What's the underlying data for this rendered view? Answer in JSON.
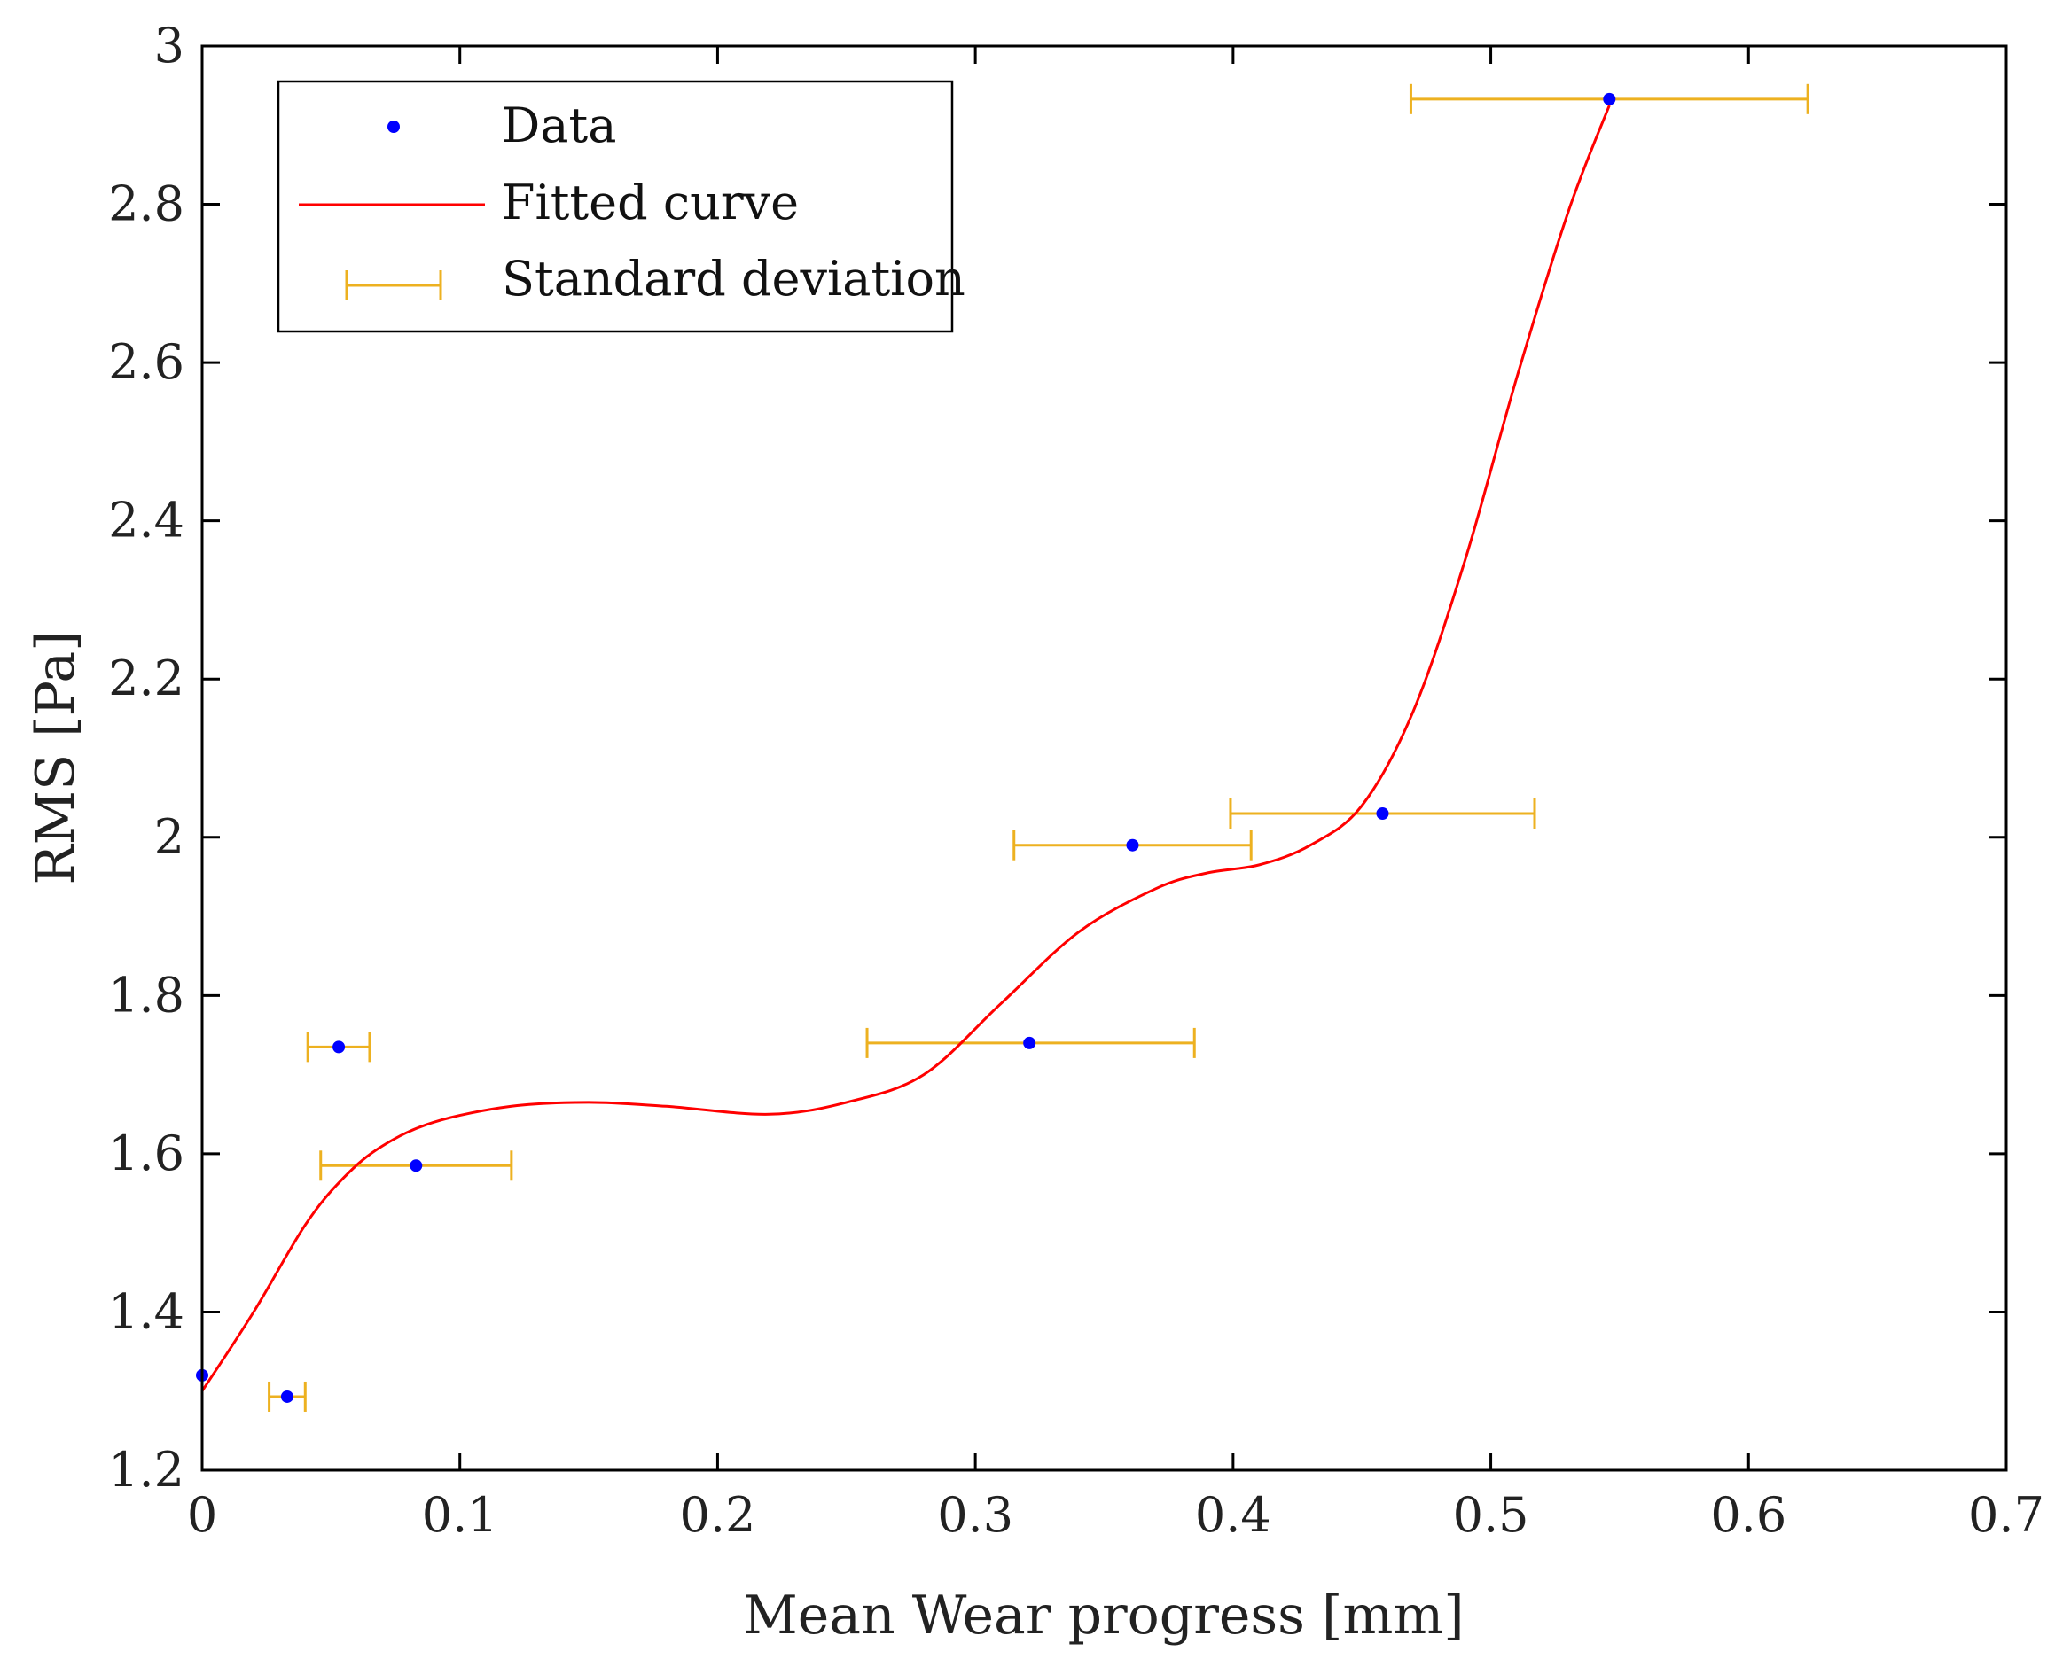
{
  "chart_data": {
    "type": "scatter",
    "title": "",
    "xlabel": "Mean Wear progress [mm]",
    "ylabel": "RMS [Pa]",
    "xlim": [
      0,
      0.7
    ],
    "ylim": [
      1.2,
      3.0
    ],
    "xticks": [
      0,
      0.1,
      0.2,
      0.3,
      0.4,
      0.5,
      0.6,
      0.7
    ],
    "xtick_labels": [
      "0",
      "0.1",
      "0.2",
      "0.3",
      "0.4",
      "0.5",
      "0.6",
      "0.7"
    ],
    "yticks": [
      1.2,
      1.4,
      1.6,
      1.8,
      2.0,
      2.2,
      2.4,
      2.6,
      2.8,
      3.0
    ],
    "ytick_labels": [
      "1.2",
      "1.4",
      "1.6",
      "1.8",
      "2",
      "2.2",
      "2.4",
      "2.6",
      "2.8",
      "3"
    ],
    "grid": false,
    "legend_position": "top-left",
    "legend": [
      "Data",
      "Fitted curve",
      "Standard deviation"
    ],
    "colors": {
      "data": "#0000ff",
      "fit": "#ff0000",
      "error": "#edb120",
      "axes": "#000000"
    },
    "series": [
      {
        "name": "Data",
        "kind": "points",
        "x": [
          0.0,
          0.033,
          0.053,
          0.083,
          0.321,
          0.361,
          0.458,
          0.546
        ],
        "y": [
          1.32,
          1.293,
          1.735,
          1.585,
          1.74,
          1.99,
          2.03,
          2.933
        ]
      },
      {
        "name": "Fitted curve",
        "kind": "line",
        "x": [
          0.0,
          0.02,
          0.04,
          0.055,
          0.07,
          0.09,
          0.12,
          0.15,
          0.18,
          0.22,
          0.25,
          0.28,
          0.31,
          0.34,
          0.37,
          0.39,
          0.41,
          0.43,
          0.45,
          0.47,
          0.49,
          0.51,
          0.53,
          0.546
        ],
        "y": [
          1.3,
          1.4,
          1.51,
          1.57,
          1.61,
          1.64,
          1.66,
          1.665,
          1.66,
          1.65,
          1.665,
          1.7,
          1.79,
          1.88,
          1.935,
          1.955,
          1.965,
          1.99,
          2.04,
          2.16,
          2.35,
          2.58,
          2.79,
          2.925
        ]
      },
      {
        "name": "Standard deviation",
        "kind": "horizontal-errorbar",
        "y": [
          1.32,
          1.293,
          1.735,
          1.585,
          1.74,
          1.99,
          2.03,
          2.933
        ],
        "xmin": [
          0.0,
          0.026,
          0.041,
          0.046,
          0.258,
          0.315,
          0.399,
          0.469
        ],
        "xmax": [
          0.0,
          0.04,
          0.065,
          0.12,
          0.385,
          0.407,
          0.517,
          0.623
        ]
      }
    ]
  }
}
